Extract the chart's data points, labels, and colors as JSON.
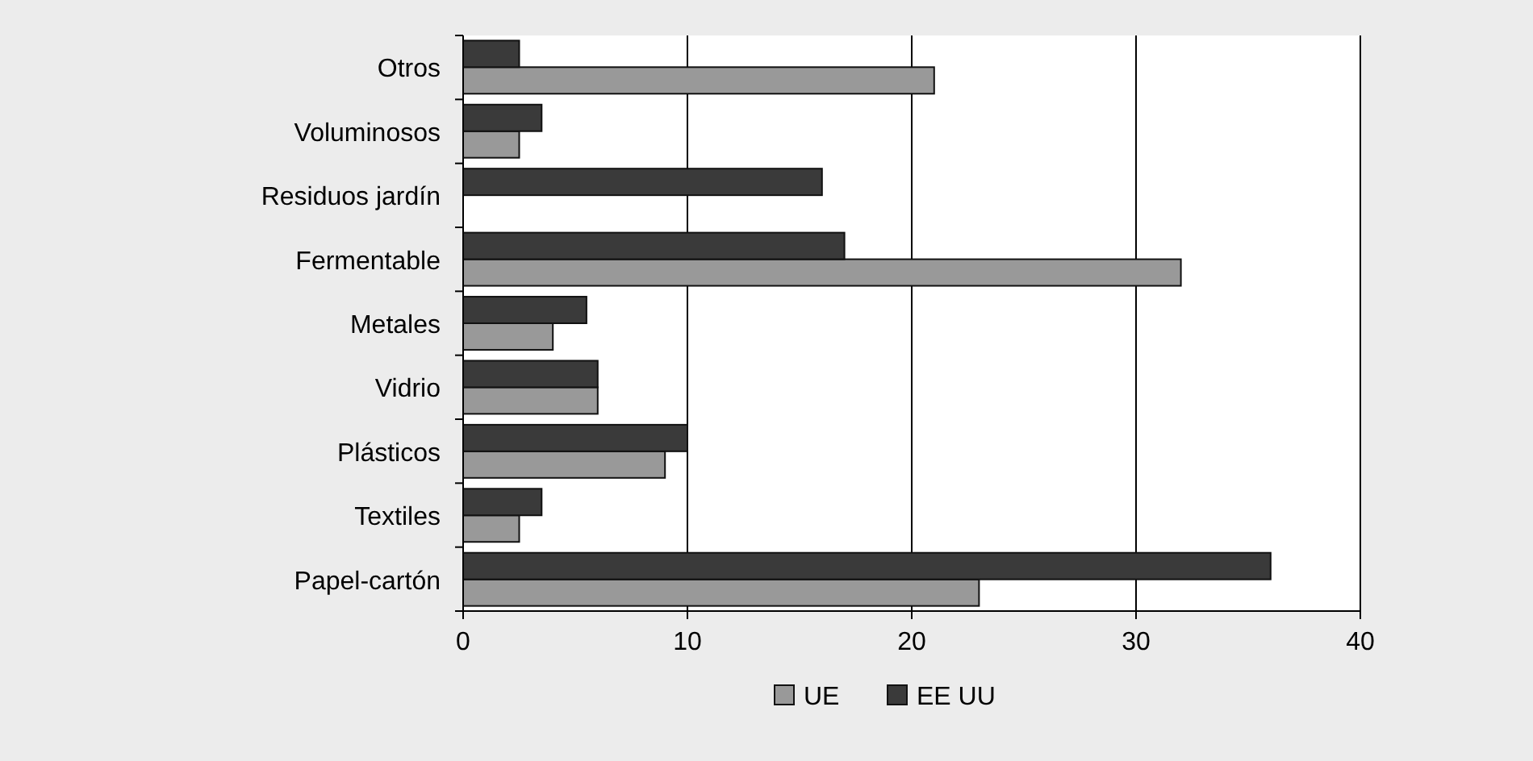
{
  "chart_data": {
    "type": "bar",
    "orientation": "horizontal",
    "categories": [
      "Otros",
      "Voluminosos",
      "Residuos jardín",
      "Fermentable",
      "Metales",
      "Vidrio",
      "Plásticos",
      "Textiles",
      "Papel-cartón"
    ],
    "series": [
      {
        "name": "UE",
        "color": "#999999",
        "values": [
          21,
          2.5,
          null,
          32,
          4,
          6,
          9,
          2.5,
          23
        ]
      },
      {
        "name": "EE UU",
        "color": "#3a3a3a",
        "values": [
          2.5,
          3.5,
          16,
          17,
          5.5,
          6,
          10,
          3.5,
          36
        ]
      }
    ],
    "xlim": [
      0,
      40
    ],
    "xticks": [
      0,
      10,
      20,
      30,
      40
    ],
    "grid": "x",
    "legend": "bottom"
  }
}
